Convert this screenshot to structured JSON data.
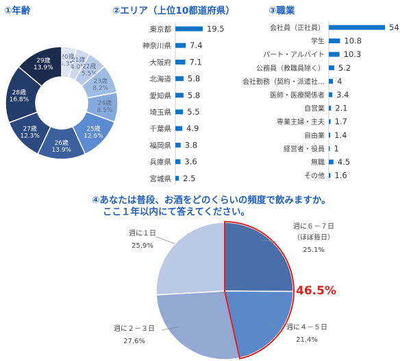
{
  "titles": {
    "age": "①年齢",
    "area": "②エリア（上位10都道府県）",
    "job": "③職業",
    "q4_line1": "④あなたは普段、お酒をどのくらいの頻度で飲みますか。",
    "q4_line2": "ここ１年以内にて答えてください。"
  },
  "chart_data": [
    {
      "type": "pie",
      "subtype": "donut",
      "title": "①年齢",
      "slices": [
        {
          "label": "20歳",
          "value": 4.3,
          "display": "4.3%",
          "color": "#dde4f2"
        },
        {
          "label": "21歳",
          "value": 4.0,
          "display": "4.0%",
          "color": "#cfd9ee"
        },
        {
          "label": "22歳",
          "value": 5.5,
          "display": "5.5%",
          "color": "#b9c9e8"
        },
        {
          "label": "23歳",
          "value": 8.2,
          "display": "8.2%",
          "color": "#9fbce3"
        },
        {
          "label": "24歳",
          "value": 8.5,
          "display": "8.5%",
          "color": "#85a9db"
        },
        {
          "label": "25歳",
          "value": 12.6,
          "display": "12.6%",
          "color": "#5b8ad0"
        },
        {
          "label": "26歳",
          "value": 13.9,
          "display": "13.9%",
          "color": "#3c5f9d"
        },
        {
          "label": "27歳",
          "value": 12.3,
          "display": "12.3%",
          "color": "#2c4a80"
        },
        {
          "label": "28歳",
          "value": 16.8,
          "display": "16.8%",
          "color": "#233b68"
        },
        {
          "label": "29歳",
          "value": 13.9,
          "display": "13.9%",
          "color": "#1b2c4f"
        }
      ]
    },
    {
      "type": "bar",
      "orientation": "horizontal",
      "title": "②エリア（上位10都道府県）",
      "categories": [
        "東京都",
        "神奈川県",
        "大阪府",
        "北海道",
        "愛知県",
        "埼玉県",
        "千葉県",
        "福岡県",
        "兵庫県",
        "宮城県"
      ],
      "values": [
        19.5,
        7.4,
        7.1,
        5.8,
        5.8,
        5.5,
        4.9,
        3.8,
        3.6,
        2.5
      ],
      "color": "#0f74c7"
    },
    {
      "type": "bar",
      "orientation": "horizontal",
      "title": "③職業",
      "categories": [
        "会社員（正社員）",
        "学生",
        "パート・アルバイト",
        "公務員（教職員除く）",
        "会社勤務（契約・派遣社…",
        "医師・医療関係者",
        "自営業",
        "専業主婦・主夫",
        "自由業",
        "経営者・役員",
        "無職",
        "その他"
      ],
      "values": [
        54,
        10.8,
        10.3,
        5.2,
        4,
        3.4,
        2.1,
        1.7,
        1.4,
        1,
        4.5,
        1.6
      ],
      "color": "#0f74c7"
    },
    {
      "type": "pie",
      "title": "④あなたは普段、お酒をどのくらいの頻度で飲みますか。ここ１年以内にて答えてください。",
      "slices": [
        {
          "label_lines": [
            "週に６－７日",
            "（ほぼ毎日）"
          ],
          "value": 25.1,
          "display": "25.1%",
          "color": "#4a6fa8"
        },
        {
          "label_lines": [
            "週に４－５日"
          ],
          "value": 21.4,
          "display": "21.4%",
          "color": "#5b88c8"
        },
        {
          "label_lines": [
            "週に２－３日"
          ],
          "value": 27.6,
          "display": "27.6%",
          "color": "#93a9d3"
        },
        {
          "label_lines": [
            "週に１日"
          ],
          "value": 25.9,
          "display": "25.9%",
          "color": "#bcc9e4"
        }
      ],
      "highlight": {
        "text": "46.5%",
        "color": "#e0211c"
      }
    }
  ]
}
